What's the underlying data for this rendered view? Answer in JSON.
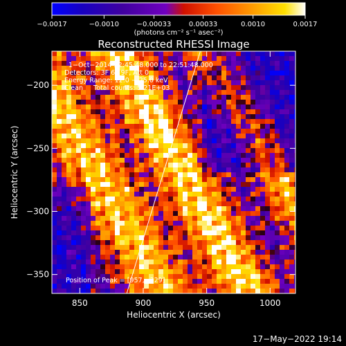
{
  "chart_data": {
    "type": "heatmap",
    "title": "Reconstructed RHESSI Image",
    "xlabel": "Heliocentric X (arcsec)",
    "ylabel": "Heliocentric Y (arcsec)",
    "xlim": [
      828,
      1020
    ],
    "ylim": [
      -365,
      -173
    ],
    "x_ticks": [
      850,
      900,
      950,
      1000
    ],
    "y_ticks": [
      -200,
      -250,
      -300,
      -350
    ],
    "x_tick_labels": [
      "850",
      "900",
      "950",
      "1000"
    ],
    "y_tick_labels": [
      "−200",
      "−250",
      "−300",
      "−350"
    ],
    "colorbar": {
      "range": [
        -0.0017,
        0.0017
      ],
      "ticks": [
        -0.0017,
        -0.001,
        -0.00033,
        0.00033,
        0.001,
        0.0017
      ],
      "tick_labels": [
        "−0.0017",
        "−0.0010",
        "−0.00033",
        "0.00033",
        "0.0010",
        "0.0017"
      ],
      "unit_label": "(photons cm⁻² s⁻¹ asec⁻²)",
      "colormap": [
        "#0000ff",
        "#1800c0",
        "#4000a0",
        "#7000c0",
        "#d01000",
        "#ff5000",
        "#ffa000",
        "#ffe000",
        "#ffffff"
      ]
    },
    "annotations": {
      "line1": "1−Oct−2014 22:45:48.000 to 22:51:48.000",
      "line2": "Detectors: 3F 6F 9F, Att 0",
      "line3": "Energy Range: 12.0 − 25.0 keV",
      "line4": "Clean     Total counts: 5.21E+03",
      "peak": "Position of Peak = [957,−329]"
    },
    "peak_position": [
      957,
      -329
    ],
    "limb_line": [
      [
        887,
        -365
      ],
      [
        945,
        -173
      ]
    ],
    "grid": false
  },
  "footer": {
    "timestamp": "17−May−2022 19:14"
  }
}
